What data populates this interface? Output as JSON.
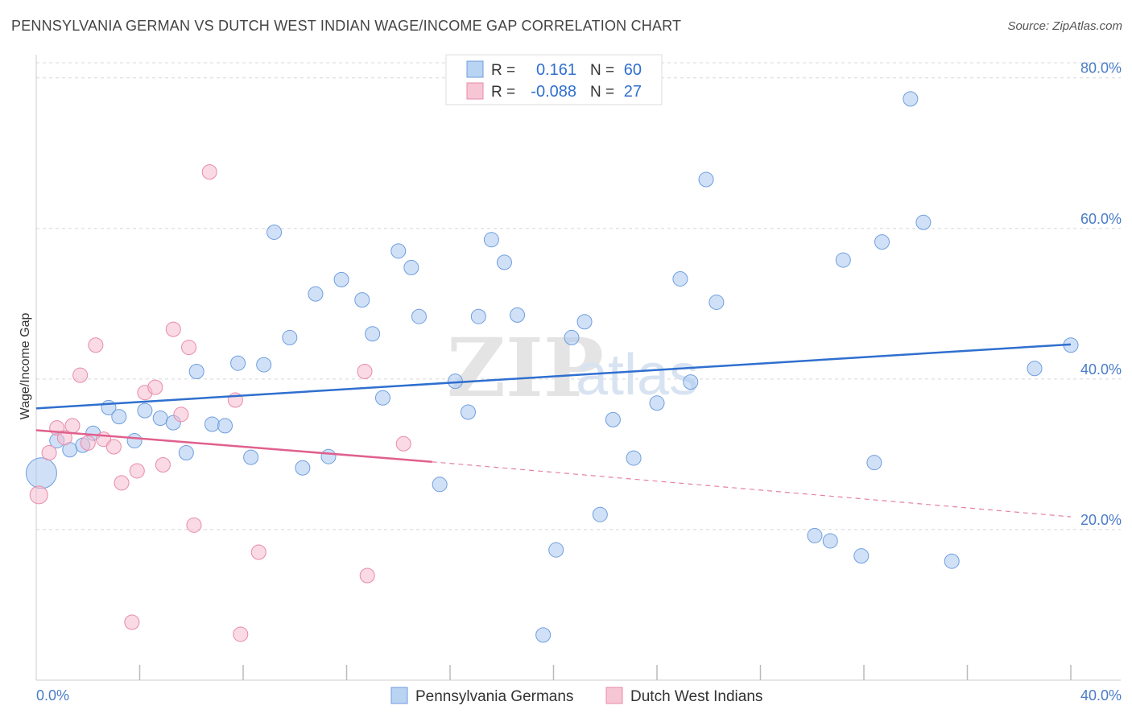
{
  "header": {
    "title": "PENNSYLVANIA GERMAN VS DUTCH WEST INDIAN WAGE/INCOME GAP CORRELATION CHART",
    "source": "Source: ZipAtlas.com"
  },
  "watermark": {
    "zip": "ZIP",
    "atlas": "atlas"
  },
  "legend_top": {
    "rows": [
      {
        "r_label": "R =",
        "r_value": "0.161",
        "n_label": "N =",
        "n_value": "60",
        "color": "#a9c8f0"
      },
      {
        "r_label": "R =",
        "r_value": "-0.088",
        "n_label": "N =",
        "n_value": "27",
        "color": "#f5bccd"
      }
    ]
  },
  "legend_bottom": {
    "items": [
      {
        "label": "Pennsylvania Germans",
        "color": "#b9d3f3"
      },
      {
        "label": "Dutch West Indians",
        "color": "#f7c6d4"
      }
    ]
  },
  "chart_data": {
    "type": "scatter",
    "title": "PENNSYLVANIA GERMAN VS DUTCH WEST INDIAN WAGE/INCOME GAP CORRELATION CHART",
    "xlabel": "",
    "ylabel": "Wage/Income Gap",
    "xlim": [
      0,
      40
    ],
    "ylim": [
      0,
      82
    ],
    "x_tick_labels": [
      "0.0%",
      "40.0%"
    ],
    "y_ticks": [
      20,
      40,
      60,
      80
    ],
    "y_tick_labels": [
      "20.0%",
      "40.0%",
      "60.0%",
      "80.0%"
    ],
    "grid": true,
    "legend_position": "top-center",
    "series": [
      {
        "name": "Pennsylvania Germans",
        "color": "#a9c8f0",
        "stroke": "#6f9ede",
        "points": [
          [
            0.2,
            27.5
          ],
          [
            0.8,
            31.8
          ],
          [
            1.3,
            30.6
          ],
          [
            1.8,
            31.2
          ],
          [
            2.2,
            32.8
          ],
          [
            2.8,
            36.2
          ],
          [
            3.2,
            35.0
          ],
          [
            3.8,
            31.8
          ],
          [
            4.2,
            35.8
          ],
          [
            4.8,
            34.8
          ],
          [
            5.3,
            34.2
          ],
          [
            5.8,
            30.2
          ],
          [
            6.2,
            41.0
          ],
          [
            6.8,
            34.0
          ],
          [
            7.3,
            33.8
          ],
          [
            7.8,
            42.1
          ],
          [
            8.3,
            29.6
          ],
          [
            8.8,
            41.9
          ],
          [
            9.2,
            59.5
          ],
          [
            9.8,
            45.5
          ],
          [
            10.3,
            28.2
          ],
          [
            10.8,
            51.3
          ],
          [
            11.3,
            29.7
          ],
          [
            11.8,
            53.2
          ],
          [
            12.6,
            50.5
          ],
          [
            13.0,
            46.0
          ],
          [
            13.4,
            37.5
          ],
          [
            14.0,
            57.0
          ],
          [
            14.5,
            54.8
          ],
          [
            14.8,
            48.3
          ],
          [
            15.6,
            26.0
          ],
          [
            16.2,
            39.7
          ],
          [
            16.7,
            35.6
          ],
          [
            17.1,
            48.3
          ],
          [
            17.6,
            58.5
          ],
          [
            18.1,
            55.5
          ],
          [
            18.6,
            48.5
          ],
          [
            19.6,
            6.0
          ],
          [
            20.1,
            17.3
          ],
          [
            20.7,
            45.5
          ],
          [
            21.2,
            47.6
          ],
          [
            21.8,
            22.0
          ],
          [
            22.3,
            34.6
          ],
          [
            23.1,
            29.5
          ],
          [
            24.0,
            36.8
          ],
          [
            24.9,
            53.3
          ],
          [
            25.3,
            39.6
          ],
          [
            25.9,
            66.5
          ],
          [
            26.3,
            50.2
          ],
          [
            30.1,
            19.2
          ],
          [
            30.7,
            18.5
          ],
          [
            31.2,
            55.8
          ],
          [
            31.9,
            16.5
          ],
          [
            32.4,
            28.9
          ],
          [
            32.7,
            58.2
          ],
          [
            33.8,
            77.2
          ],
          [
            34.3,
            60.8
          ],
          [
            35.4,
            15.8
          ],
          [
            38.6,
            41.4
          ],
          [
            40.0,
            44.5
          ]
        ]
      },
      {
        "name": "Dutch West Indians",
        "color": "#f5bccd",
        "stroke": "#e88aa9",
        "points": [
          [
            0.1,
            24.6
          ],
          [
            0.5,
            30.2
          ],
          [
            0.8,
            33.5
          ],
          [
            1.1,
            32.2
          ],
          [
            1.4,
            33.8
          ],
          [
            1.7,
            40.5
          ],
          [
            2.0,
            31.5
          ],
          [
            2.3,
            44.5
          ],
          [
            2.6,
            32.0
          ],
          [
            3.0,
            31.0
          ],
          [
            3.3,
            26.2
          ],
          [
            3.7,
            7.7
          ],
          [
            3.9,
            27.8
          ],
          [
            4.2,
            38.2
          ],
          [
            4.6,
            38.9
          ],
          [
            4.9,
            28.6
          ],
          [
            5.3,
            46.6
          ],
          [
            5.6,
            35.3
          ],
          [
            5.9,
            44.2
          ],
          [
            6.1,
            20.6
          ],
          [
            6.7,
            67.5
          ],
          [
            7.7,
            37.2
          ],
          [
            7.9,
            6.1
          ],
          [
            8.6,
            17.0
          ],
          [
            12.8,
            13.9
          ],
          [
            12.7,
            41.0
          ],
          [
            14.2,
            31.4
          ]
        ]
      }
    ],
    "trend_lines": [
      {
        "series": "Pennsylvania Germans",
        "x": [
          0,
          40
        ],
        "y": [
          36.1,
          44.6
        ],
        "color": "#2f6fcf"
      },
      {
        "series": "Dutch West Indians",
        "x": [
          0,
          15.3
        ],
        "y": [
          33.2,
          29.0
        ],
        "color": "#e0608e",
        "dashed_extension_to": [
          40,
          21.7
        ]
      }
    ]
  }
}
